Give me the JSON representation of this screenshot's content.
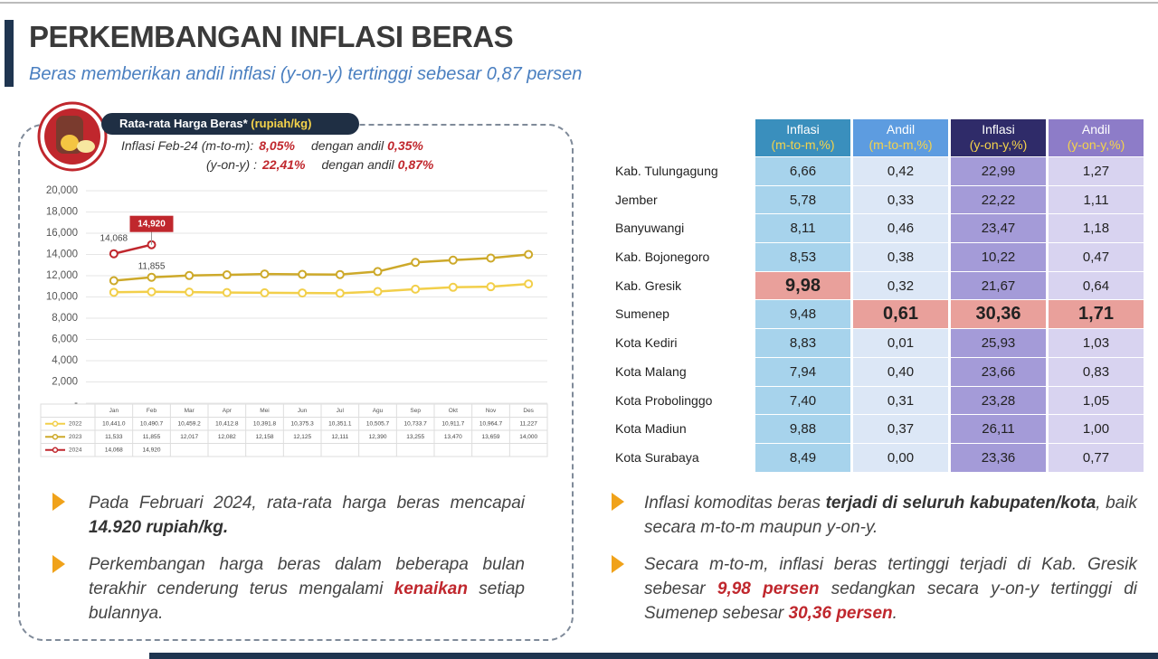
{
  "header": {
    "title": "PERKEMBANGAN INFLASI BERAS",
    "subtitle": "Beras memberikan andil inflasi (y-on-y) tertinggi sebesar 0,87 persen"
  },
  "chart_data": {
    "type": "line",
    "title": "Rata-rata Harga Beras*",
    "unit": "(rupiah/kg)",
    "notes": [
      {
        "label": "Inflasi Feb-24 (m-to-m):",
        "value": "8,05%",
        "andil_label": "dengan andil",
        "andil": "0,35%"
      },
      {
        "label": "(y-on-y)   :",
        "value": "22,41%",
        "andil_label": "dengan andil",
        "andil": "0,87%"
      }
    ],
    "categories": [
      "Jan",
      "Feb",
      "Mar",
      "Apr",
      "Mei",
      "Jun",
      "Jul",
      "Agu",
      "Sep",
      "Okt",
      "Nov",
      "Des"
    ],
    "series": [
      {
        "name": "2022",
        "color": "#f2cf4a",
        "values": [
          10441.0,
          10490.7,
          10459.2,
          10412.8,
          10391.8,
          10375.3,
          10351.1,
          10505.7,
          10733.7,
          10911.7,
          10964.7,
          11227
        ],
        "value_labels": [
          "10,441.0",
          "10,490.7",
          "10,459.2",
          "10,412.8",
          "10,391.8",
          "10,375.3",
          "10,351.1",
          "10,505.7",
          "10,733.7",
          "10,911.7",
          "10,964.7",
          "11,227"
        ]
      },
      {
        "name": "2023",
        "color": "#cda92a",
        "values": [
          11533,
          11855,
          12017,
          12082,
          12158,
          12125,
          12111,
          12390,
          13255,
          13470,
          13659,
          14000
        ],
        "value_labels": [
          "11,533",
          "11,855",
          "12,017",
          "12,082",
          "12,158",
          "12,125",
          "12,111",
          "12,390",
          "13,255",
          "13,470",
          "13,659",
          "14,000"
        ]
      },
      {
        "name": "2024",
        "color": "#c0272d",
        "values": [
          14068,
          14920,
          null,
          null,
          null,
          null,
          null,
          null,
          null,
          null,
          null,
          null
        ],
        "value_labels": [
          "14,068",
          "14,920",
          null,
          null,
          null,
          null,
          null,
          null,
          null,
          null,
          null,
          null
        ]
      }
    ],
    "ylim": [
      0,
      20000
    ],
    "yticks": [
      {
        "value": 0,
        "label": "-"
      },
      {
        "value": 2000,
        "label": "2,000"
      },
      {
        "value": 4000,
        "label": "4,000"
      },
      {
        "value": 6000,
        "label": "6,000"
      },
      {
        "value": 8000,
        "label": "8,000"
      },
      {
        "value": 10000,
        "label": "10,000"
      },
      {
        "value": 12000,
        "label": "12,000"
      },
      {
        "value": 14000,
        "label": "14,000"
      },
      {
        "value": 16000,
        "label": "16,000"
      },
      {
        "value": 18000,
        "label": "18,000"
      },
      {
        "value": 20000,
        "label": "20,000"
      }
    ],
    "grid": true
  },
  "table": {
    "headers": [
      {
        "line1": "Inflasi",
        "line2": "(m-to-m,%)"
      },
      {
        "line1": "Andil",
        "line2": "(m-to-m,%)"
      },
      {
        "line1": "Inflasi",
        "line2": "(y-on-y,%)"
      },
      {
        "line1": "Andil",
        "line2": "(y-on-y,%)"
      }
    ],
    "rows": [
      [
        "Kab. Tulungagung",
        "6,66",
        "0,42",
        "22,99",
        "1,27"
      ],
      [
        "Jember",
        "5,78",
        "0,33",
        "22,22",
        "1,11"
      ],
      [
        "Banyuwangi",
        "8,11",
        "0,46",
        "23,47",
        "1,18"
      ],
      [
        "Kab. Bojonegoro",
        "8,53",
        "0,38",
        "10,22",
        "0,47"
      ],
      [
        "Kab. Gresik",
        "9,98",
        "0,32",
        "21,67",
        "0,64"
      ],
      [
        "Sumenep",
        "9,48",
        "0,61",
        "30,36",
        "1,71"
      ],
      [
        "Kota Kediri",
        "8,83",
        "0,01",
        "25,93",
        "1,03"
      ],
      [
        "Kota Malang",
        "7,94",
        "0,40",
        "23,66",
        "0,83"
      ],
      [
        "Kota Probolinggo",
        "7,40",
        "0,31",
        "23,28",
        "1,05"
      ],
      [
        "Kota Madiun",
        "9,88",
        "0,37",
        "26,11",
        "1,00"
      ],
      [
        "Kota Surabaya",
        "8,49",
        "0,00",
        "23,36",
        "0,77"
      ]
    ]
  },
  "bullets_left": [
    [
      "Pada Februari 2024, rata-rata harga beras mencapai ",
      "14.920 rupiah/kg."
    ],
    [
      "Perkembangan harga beras dalam beberapa bulan terakhir cenderung terus mengalami ",
      "kenaikan",
      " setiap bulannya."
    ]
  ],
  "bullets_right": [
    [
      "Inflasi komoditas beras ",
      "terjadi di seluruh kabupaten/kota",
      ", baik secara m-to-m maupun y-on-y."
    ],
    [
      "Secara m-to-m, inflasi beras tertinggi terjadi di Kab. Gresik sebesar ",
      "9,98 persen",
      " sedangkan secara y-on-y tertinggi di Sumenep sebesar ",
      "30,36 persen",
      "."
    ]
  ]
}
